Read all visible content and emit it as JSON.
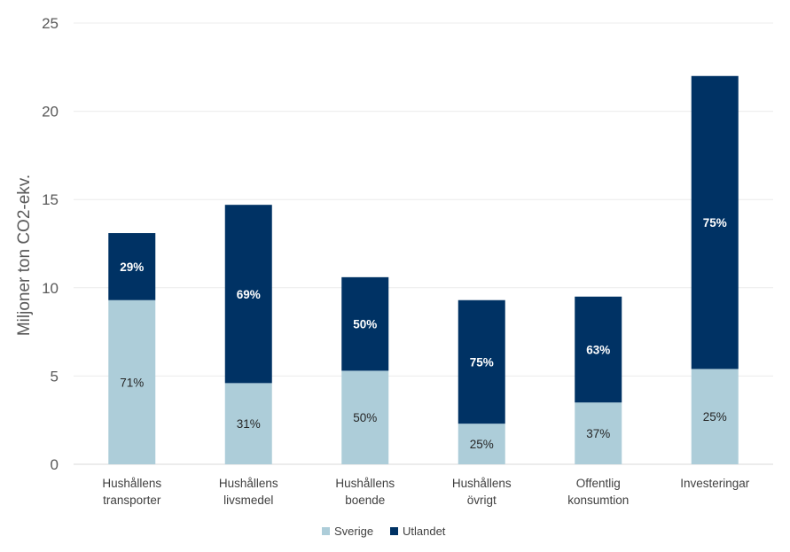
{
  "chart_data": {
    "type": "bar",
    "stacked": true,
    "title": "",
    "xlabel": "",
    "ylabel": "Miljoner ton CO2-ekv.",
    "ylim": [
      0,
      25
    ],
    "yticks": [
      0,
      5,
      10,
      15,
      20,
      25
    ],
    "grid": true,
    "legend_position": "bottom-center",
    "categories": [
      [
        "Hushållens",
        "transporter"
      ],
      [
        "Hushållens",
        "livsmedel"
      ],
      [
        "Hushållens",
        "boende"
      ],
      [
        "Hushållens",
        "övrigt"
      ],
      [
        "Offentlig",
        "konsumtion"
      ],
      [
        "Investeringar"
      ]
    ],
    "series": [
      {
        "name": "Sverige",
        "color": "#adcdd9",
        "label_color": "#262626",
        "values": [
          9.3,
          4.6,
          5.3,
          2.3,
          3.5,
          5.4
        ],
        "labels": [
          "71%",
          "31%",
          "50%",
          "25%",
          "37%",
          "25%"
        ]
      },
      {
        "name": "Utlandet",
        "color": "#003264",
        "label_color": "#ffffff",
        "values": [
          3.8,
          10.1,
          5.3,
          7.0,
          6.0,
          16.6
        ],
        "labels": [
          "29%",
          "69%",
          "50%",
          "75%",
          "63%",
          "75%"
        ]
      }
    ]
  }
}
